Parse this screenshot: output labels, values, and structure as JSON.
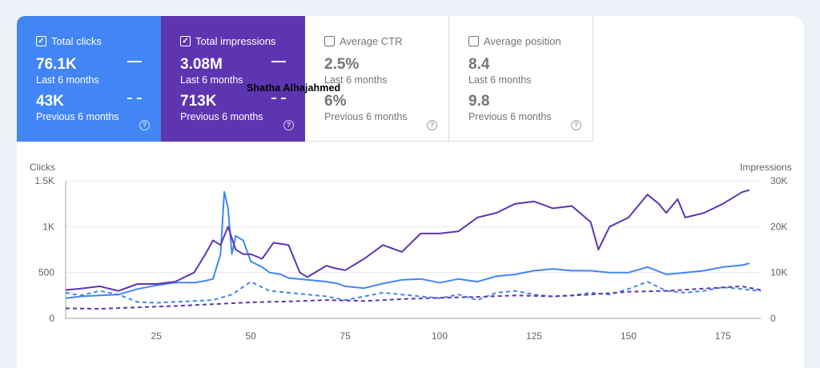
{
  "metrics": [
    {
      "id": "clicks",
      "label": "Total clicks",
      "checked": true,
      "value": "76.1K",
      "value_period": "Last 6 months",
      "prev_value": "43K",
      "prev_period": "Previous 6 months",
      "color": "#4285f4"
    },
    {
      "id": "impressions",
      "label": "Total impressions",
      "checked": true,
      "value": "3.08M",
      "value_period": "Last 6 months",
      "prev_value": "713K",
      "prev_period": "Previous 6 months",
      "color": "#5e35b1"
    },
    {
      "id": "ctr",
      "label": "Average CTR",
      "checked": false,
      "value": "2.5%",
      "value_period": "Last 6 months",
      "prev_value": "6%",
      "prev_period": "Previous 6 months"
    },
    {
      "id": "position",
      "label": "Average position",
      "checked": false,
      "value": "8.4",
      "value_period": "Last 6 months",
      "prev_value": "9.8",
      "prev_period": "Previous 6 months"
    }
  ],
  "overlay_text": "Shatha Alhajahmed",
  "help_glyph": "?",
  "check_glyph": "✓",
  "chart_data": {
    "type": "line",
    "left_axis_title": "Clicks",
    "right_axis_title": "Impressions",
    "left_ticks": [
      "1.5K",
      "1K",
      "500",
      "0"
    ],
    "right_ticks": [
      "30K",
      "20K",
      "10K",
      "0"
    ],
    "x_ticks": [
      "25",
      "50",
      "75",
      "100",
      "125",
      "150",
      "175"
    ],
    "ylim_left": [
      0,
      1500
    ],
    "ylim_right": [
      0,
      30000
    ],
    "xlim": [
      1,
      185
    ],
    "series": [
      {
        "id": "clicks_current",
        "axis": "left",
        "color": "#4285f4",
        "dashed": false,
        "x": [
          1,
          5,
          10,
          15,
          20,
          25,
          30,
          35,
          38,
          40,
          42,
          43,
          44,
          45,
          46,
          48,
          50,
          53,
          55,
          58,
          60,
          65,
          70,
          73,
          75,
          80,
          85,
          90,
          95,
          100,
          105,
          110,
          115,
          120,
          125,
          130,
          135,
          140,
          145,
          150,
          155,
          160,
          165,
          170,
          175,
          180,
          182
        ],
        "y": [
          220,
          240,
          250,
          260,
          320,
          360,
          390,
          390,
          410,
          430,
          700,
          1380,
          1200,
          700,
          900,
          850,
          620,
          560,
          500,
          480,
          440,
          420,
          400,
          380,
          350,
          330,
          380,
          420,
          430,
          390,
          430,
          400,
          460,
          480,
          520,
          540,
          520,
          520,
          500,
          500,
          560,
          480,
          500,
          520,
          560,
          580,
          600
        ]
      },
      {
        "id": "clicks_previous",
        "axis": "left",
        "color": "#4285f4",
        "dashed": true,
        "x": [
          1,
          5,
          10,
          15,
          20,
          25,
          30,
          35,
          40,
          45,
          50,
          55,
          60,
          65,
          70,
          75,
          80,
          85,
          90,
          95,
          100,
          105,
          110,
          115,
          120,
          125,
          130,
          135,
          140,
          145,
          150,
          155,
          160,
          165,
          170,
          175,
          180,
          185
        ],
        "y": [
          280,
          250,
          300,
          260,
          180,
          170,
          180,
          190,
          200,
          260,
          400,
          300,
          280,
          260,
          240,
          200,
          240,
          280,
          260,
          240,
          220,
          260,
          200,
          280,
          300,
          260,
          240,
          250,
          280,
          260,
          320,
          400,
          300,
          280,
          300,
          340,
          320,
          300
        ]
      },
      {
        "id": "impr_current",
        "axis": "right",
        "color": "#5e35b1",
        "dashed": false,
        "x": [
          1,
          5,
          10,
          15,
          20,
          25,
          30,
          35,
          38,
          40,
          42,
          44,
          46,
          48,
          50,
          53,
          56,
          60,
          63,
          65,
          70,
          72,
          75,
          80,
          85,
          90,
          95,
          100,
          105,
          110,
          115,
          120,
          125,
          130,
          135,
          140,
          142,
          145,
          150,
          153,
          155,
          158,
          160,
          163,
          165,
          170,
          175,
          180,
          182
        ],
        "y": [
          6200,
          6500,
          7000,
          6000,
          7500,
          7500,
          8000,
          10000,
          14000,
          17000,
          16000,
          20000,
          15000,
          14000,
          14000,
          13000,
          16500,
          16000,
          10000,
          9000,
          11500,
          11000,
          10500,
          13000,
          16000,
          14500,
          18500,
          18500,
          19000,
          22000,
          23000,
          25000,
          25500,
          24000,
          24500,
          21000,
          15000,
          20000,
          22000,
          25000,
          27000,
          25000,
          23000,
          26000,
          22000,
          23000,
          25000,
          27500,
          28000
        ]
      },
      {
        "id": "impr_previous",
        "axis": "right",
        "color": "#5e35b1",
        "dashed": true,
        "x": [
          1,
          10,
          20,
          30,
          40,
          50,
          60,
          70,
          80,
          90,
          100,
          110,
          120,
          130,
          140,
          150,
          160,
          170,
          180,
          185
        ],
        "y": [
          2200,
          2100,
          2400,
          2700,
          3100,
          3500,
          3700,
          4000,
          3800,
          4200,
          4500,
          4700,
          5000,
          4800,
          5200,
          5800,
          6000,
          6500,
          7000,
          6200
        ]
      }
    ]
  }
}
